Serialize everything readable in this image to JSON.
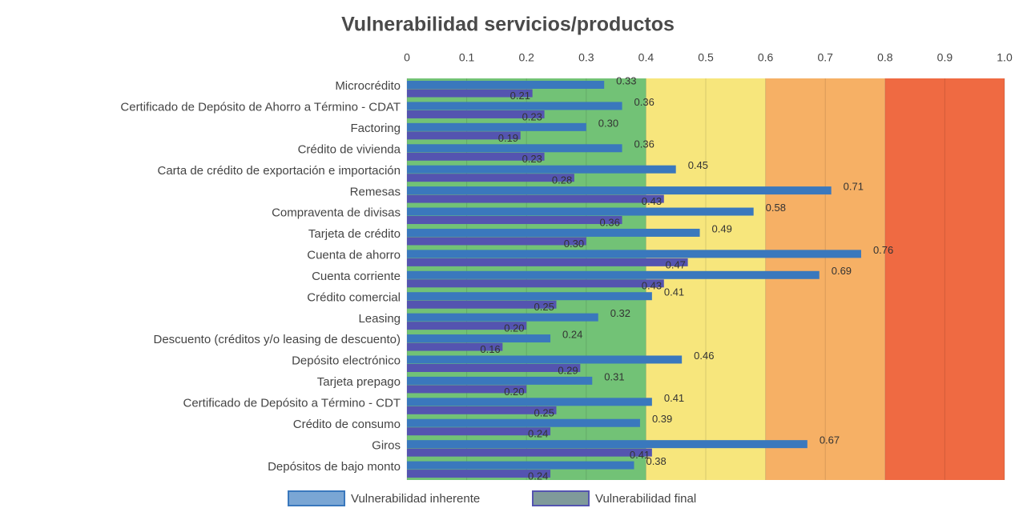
{
  "chart_data": {
    "type": "hbar",
    "title": "Vulnerabilidad servicios/productos",
    "categories": [
      "Microcrédito",
      "Certificado de Depósito de Ahorro a Término - CDAT",
      "Factoring",
      "Crédito de vivienda",
      "Carta de crédito de exportación e importación",
      "Remesas",
      "Compraventa de divisas",
      "Tarjeta de crédito",
      "Cuenta de ahorro",
      "Cuenta corriente",
      "Crédito comercial",
      "Leasing",
      "Descuento (créditos y/o leasing de descuento)",
      "Depósito electrónico",
      "Tarjeta prepago",
      "Certificado de Depósito a Término - CDT",
      "Crédito de consumo",
      "Giros",
      "Depósitos de bajo monto"
    ],
    "series": [
      {
        "name": "Vulnerabilidad inherente",
        "color": "#3a78bd",
        "legend_color": "#7aa6d4",
        "values": [
          0.33,
          0.36,
          0.3,
          0.36,
          0.45,
          0.71,
          0.58,
          0.49,
          0.76,
          0.69,
          0.41,
          0.32,
          0.24,
          0.46,
          0.31,
          0.41,
          0.39,
          0.67,
          0.38
        ],
        "value_labels": [
          "0.33",
          "0.36",
          "0.30",
          "0.36",
          "0.45",
          "0.71",
          "0.58",
          "0.49",
          "0.76",
          "0.69",
          "0.41",
          "0.32",
          "0.24",
          "0.46",
          "0.31",
          "0.41",
          "0.39",
          "0.67",
          "0.38"
        ]
      },
      {
        "name": "Vulnerabilidad final",
        "color": "#5454b0",
        "legend_color": "#7f9a9a",
        "values": [
          0.21,
          0.23,
          0.19,
          0.23,
          0.28,
          0.43,
          0.36,
          0.3,
          0.47,
          0.43,
          0.25,
          0.2,
          0.16,
          0.29,
          0.2,
          0.25,
          0.24,
          0.41,
          0.24
        ],
        "value_labels": [
          "0.21",
          "0.23",
          "0.19",
          "0.23",
          "0.28",
          "0.43",
          "0.36",
          "0.30",
          "0.47",
          "0.43",
          "0.25",
          "0.20",
          "0.16",
          "0.29",
          "0.20",
          "0.25",
          "0.24",
          "0.41",
          "0.24"
        ]
      }
    ],
    "xlim": [
      0,
      1
    ],
    "xticks": [
      0,
      0.1,
      0.2,
      0.3,
      0.4,
      0.5,
      0.6,
      0.7,
      0.8,
      0.9,
      {
        "value": 1,
        "label": "1.0"
      }
    ],
    "bands": [
      {
        "from": 0,
        "to": 0.4,
        "color": "#72c276"
      },
      {
        "from": 0.4,
        "to": 0.6,
        "color": "#f7e67c"
      },
      {
        "from": 0.6,
        "to": 0.8,
        "color": "#f6b065"
      },
      {
        "from": 0.8,
        "to": 1,
        "color": "#ef6a42"
      }
    ],
    "grid": true
  }
}
